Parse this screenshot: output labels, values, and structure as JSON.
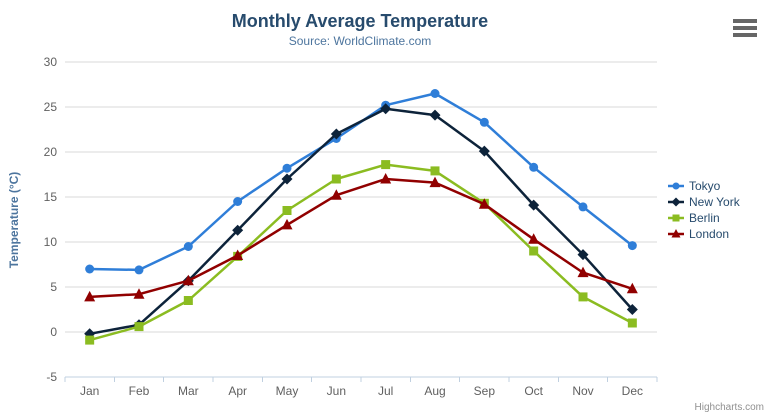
{
  "header": {
    "title": "Monthly Average Temperature",
    "subtitle": "Source: WorldClimate.com"
  },
  "export_menu": {
    "icon": "hamburger-menu-icon"
  },
  "credits": {
    "label": "Highcharts.com"
  },
  "chart_data": {
    "type": "line",
    "title": "Monthly Average Temperature",
    "subtitle": "Source: WorldClimate.com",
    "xlabel": "",
    "ylabel": "Temperature (°C)",
    "ylim": [
      -5,
      30
    ],
    "ytick_step": 5,
    "grid": true,
    "legend_position": "right-middle",
    "categories": [
      "Jan",
      "Feb",
      "Mar",
      "Apr",
      "May",
      "Jun",
      "Jul",
      "Aug",
      "Sep",
      "Oct",
      "Nov",
      "Dec"
    ],
    "series": [
      {
        "name": "Tokyo",
        "color": "#2f7ed8",
        "marker": "circle",
        "values": [
          7.0,
          6.9,
          9.5,
          14.5,
          18.2,
          21.5,
          25.2,
          26.5,
          23.3,
          18.3,
          13.9,
          9.6
        ]
      },
      {
        "name": "New York",
        "color": "#0d233a",
        "marker": "diamond",
        "values": [
          -0.2,
          0.8,
          5.7,
          11.3,
          17.0,
          22.0,
          24.8,
          24.1,
          20.1,
          14.1,
          8.6,
          2.5
        ]
      },
      {
        "name": "Berlin",
        "color": "#8bbc21",
        "marker": "square",
        "values": [
          -0.9,
          0.6,
          3.5,
          8.4,
          13.5,
          17.0,
          18.6,
          17.9,
          14.3,
          9.0,
          3.9,
          1.0
        ]
      },
      {
        "name": "London",
        "color": "#910000",
        "marker": "triangle",
        "values": [
          3.9,
          4.2,
          5.7,
          8.5,
          11.9,
          15.2,
          17.0,
          16.6,
          14.2,
          10.3,
          6.6,
          4.8
        ]
      }
    ]
  },
  "colors": {
    "title": "#274b6d",
    "subtitle": "#4d759e",
    "y_axis_title": "#4d759e",
    "axis_label": "#606060",
    "axis_line": "#c0d0e0",
    "gridline": "#d8d8d8",
    "legend_text": "#274b6d",
    "menu_icon": "#666666",
    "credits": "#909090",
    "background": "#ffffff"
  }
}
